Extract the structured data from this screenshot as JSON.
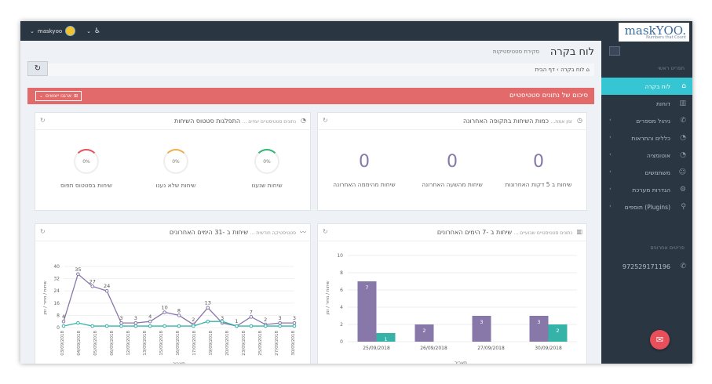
{
  "topbar": {
    "username": "maskyoo",
    "chevron": "⌄",
    "accessibility_icon": "♿"
  },
  "logo": {
    "brand": "maskYOO.",
    "tagline": "Numbers that Count"
  },
  "sidebar": {
    "main_menu_title": "תפריט ראשי",
    "items": [
      {
        "label": "לוח בקרה",
        "icon": "home-icon",
        "glyph": "⌂",
        "active": true,
        "chevron": ""
      },
      {
        "label": "דוחות",
        "icon": "chart-icon",
        "glyph": "▥",
        "active": false,
        "chevron": ""
      },
      {
        "label": "ניהול מספרים",
        "icon": "phone-icon",
        "glyph": "✆",
        "active": false,
        "chevron": "‹"
      },
      {
        "label": "כללים והתראות",
        "icon": "bell-icon",
        "glyph": "◔",
        "active": false,
        "chevron": "‹"
      },
      {
        "label": "אוטומציה",
        "icon": "bell-icon",
        "glyph": "◔",
        "active": false,
        "chevron": "‹"
      },
      {
        "label": "משתמשים",
        "icon": "users-icon",
        "glyph": "☺",
        "active": false,
        "chevron": "‹"
      },
      {
        "label": "הגדרות מערכת",
        "icon": "gear-icon",
        "glyph": "⚙",
        "active": false,
        "chevron": "‹"
      },
      {
        "label": "תוספים (Plugins)",
        "icon": "wrench-icon",
        "glyph": "⚲",
        "active": false,
        "chevron": "‹"
      }
    ],
    "recent_numbers_title": "פריטים אחרונים",
    "recent_number": "972529171196",
    "recent_glyph": "✆"
  },
  "page": {
    "title": "לוח בקרה",
    "subtitle": "סקירת סטטיסטיקות",
    "refresh_glyph": "↻"
  },
  "breadcrumb": {
    "home": "דף הבית",
    "separator": "›",
    "current": "לוח בקרה",
    "home_glyph": "⌂"
  },
  "banner": {
    "title": "סיכום של נתונים סטטיסטיים",
    "actions_label": "ארגנו ייצואים",
    "actions_chevron": "⌄",
    "actions_glyph": "⊞"
  },
  "panel_recent": {
    "title": "כמות השיחות בתקופה האחרונה",
    "subtitle": "זמן אמת...",
    "stats": [
      {
        "value": "0",
        "label": "שיחות ב 5 דקות האחרונות"
      },
      {
        "value": "0",
        "label": "שיחות מהשעה האחרונה"
      },
      {
        "value": "0",
        "label": "שיחות מהיממה האחרונה"
      }
    ]
  },
  "panel_status": {
    "title": "התפלגות סטטוס השיחות",
    "subtitle": "נתונים סטטיסטיים יומיים ...",
    "pies": [
      {
        "value": "0%",
        "label": "שיחות שנענו",
        "accent": "#2bb673"
      },
      {
        "value": "0%",
        "label": "שיחות שלא נענו",
        "accent": "#f0ad4e"
      },
      {
        "value": "0%",
        "label": "שיחות בסטטוס תפוס",
        "accent": "#e7505a"
      }
    ]
  },
  "panel_week": {
    "title": "שיחות ב -7 הימים האחרונים",
    "subtitle": "נתונים סטטיסטיים שבועיים ..."
  },
  "panel_month": {
    "title": "שיחות ב -31 הימים האחרונים",
    "subtitle": "סטטיסטיקה חודשית ..."
  },
  "chart_data": [
    {
      "type": "bar",
      "categories": [
        "25/09/2018",
        "26/09/2018",
        "27/09/2018",
        "30/09/2018"
      ],
      "series": [
        {
          "values": [
            7,
            2,
            3,
            3
          ],
          "color": "#8877a9"
        },
        {
          "values": [
            1,
            0,
            0,
            2
          ],
          "color": "#36b3a8"
        }
      ],
      "ylabel": "שיחות / מחיר / זמן",
      "xlabel": "תאריך",
      "ylim": [
        0,
        10
      ],
      "yticks": [
        0,
        2,
        4,
        6,
        8,
        10
      ]
    },
    {
      "type": "line",
      "x": [
        "03/09/2018",
        "04/09/2018",
        "05/09/2018",
        "06/09/2018",
        "07/09/2018",
        "10/09/2018",
        "11/09/2018",
        "12/09/2018",
        "13/09/2018",
        "14/09/2018",
        "17/09/2018",
        "18/09/2018",
        "19/09/2018",
        "20/09/2018",
        "24/09/2018",
        "25/09/2018",
        "27/09/2018"
      ],
      "xticks": [
        "03/09/2018",
        "04/09/2018",
        "05/09/2018",
        "06/09/2018",
        "12/09/2018",
        "13/09/2018",
        "15/09/2018",
        "16/09/2018",
        "17/09/2018",
        "19/09/2018",
        "20/09/2018",
        "23/09/2018",
        "25/09/2018",
        "27/09/2018",
        "30/09/2018"
      ],
      "series": [
        {
          "values": [
            4,
            35,
            27,
            24,
            3,
            3,
            4,
            10,
            8,
            2,
            13,
            3,
            1,
            7,
            2,
            3,
            3
          ],
          "color": "#8877a9"
        },
        {
          "values": [
            1,
            3,
            1,
            1,
            1,
            1,
            1,
            1,
            1,
            1,
            4,
            4,
            1,
            1,
            1,
            1,
            1
          ],
          "color": "#36b3a8"
        }
      ],
      "labels": [
        "4",
        "35",
        "27",
        "24",
        "3",
        "3",
        "4",
        "10",
        "8",
        "2",
        "13",
        "3",
        "1",
        "7",
        "2",
        "3",
        "3"
      ],
      "ylabel": "שיחות / מחיר / זמן",
      "xlabel": "תאריך",
      "ylim": [
        0,
        40
      ],
      "yticks": [
        0,
        8,
        16,
        24,
        32,
        40
      ]
    }
  ]
}
